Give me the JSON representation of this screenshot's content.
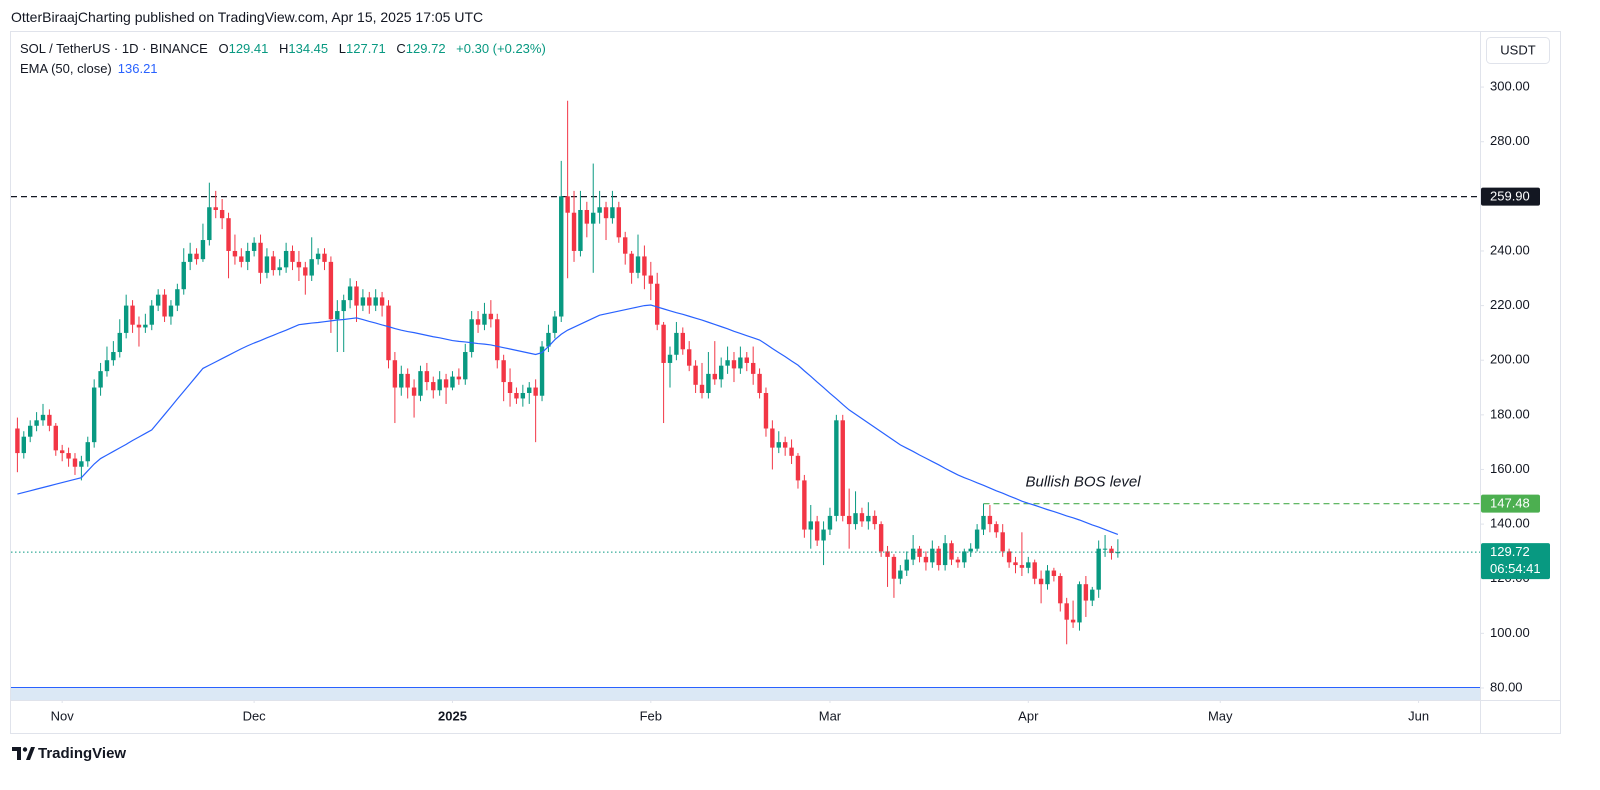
{
  "published": "OtterBiraajCharting published on TradingView.com, Apr 15, 2025 17:05 UTC",
  "footer": "TradingView",
  "chart_data": {
    "type": "candlestick",
    "currency": "USDT",
    "ohlc_labels": [
      "O",
      "H",
      "L",
      "C"
    ],
    "change": "+0.30 (+0.23%)",
    "xlim": [
      -1,
      228.6
    ],
    "ylim": [
      75.6,
      319.8
    ],
    "grid": false,
    "xticks": [
      {
        "value": 7,
        "label": "Nov"
      },
      {
        "value": 37,
        "label": "Dec"
      },
      {
        "value": 68,
        "label": "2025"
      },
      {
        "value": 99,
        "label": "Feb"
      },
      {
        "value": 127,
        "label": "Mar"
      },
      {
        "value": 158,
        "label": "Apr"
      },
      {
        "value": 188,
        "label": "May"
      },
      {
        "value": 219,
        "label": "Jun"
      }
    ],
    "yticks": [
      {
        "value": 80,
        "label": "80.00"
      },
      {
        "value": 100,
        "label": "100.00"
      },
      {
        "value": 120,
        "label": "120.00"
      },
      {
        "value": 140,
        "label": "140.00"
      },
      {
        "value": 160,
        "label": "160.00"
      },
      {
        "value": 180,
        "label": "180.00"
      },
      {
        "value": 200,
        "label": "200.00"
      },
      {
        "value": 220,
        "label": "220.00"
      },
      {
        "value": 240,
        "label": "240.00"
      },
      {
        "value": 260,
        "label": "260.00"
      },
      {
        "value": 280,
        "label": "280.00"
      },
      {
        "value": 300,
        "label": "300.00"
      }
    ],
    "series": [
      {
        "name": "SOL / TetherUS · 1D · BINANCE",
        "type": "candlestick",
        "up_color": "#089981",
        "down_color": "#f23645",
        "open": [
          175,
          166,
          172,
          176,
          178,
          180,
          176,
          167,
          166,
          164,
          161,
          163,
          170,
          190,
          196,
          200,
          203,
          210,
          220,
          213,
          212,
          213,
          220,
          224,
          216,
          220,
          226,
          236,
          239,
          237,
          244,
          256,
          255,
          252,
          240,
          238,
          236,
          240,
          243,
          232,
          238,
          233,
          234,
          240,
          236,
          234,
          231,
          237,
          239,
          236,
          215,
          218,
          222,
          227,
          220,
          223,
          220,
          223,
          220,
          200,
          190,
          195,
          190,
          187,
          196,
          192,
          189,
          193,
          190,
          194,
          193,
          203,
          215,
          213,
          217,
          215,
          200,
          192,
          188,
          186,
          188,
          190,
          187,
          205,
          210,
          216,
          260,
          254,
          240,
          255,
          250,
          254,
          256,
          252,
          256,
          245,
          239,
          232,
          238,
          231,
          228,
          213,
          199,
          202,
          210,
          204,
          198,
          191,
          188,
          195,
          193,
          198,
          200,
          197,
          201,
          199,
          195,
          188,
          175,
          168,
          170,
          168,
          165,
          156,
          138,
          141,
          134,
          138,
          143,
          178,
          143,
          140,
          144,
          141,
          143,
          140,
          130,
          128,
          120,
          123,
          127,
          131,
          128,
          126,
          131,
          125,
          133,
          127,
          126,
          130,
          131,
          138,
          143,
          140,
          137,
          130,
          126,
          125,
          124,
          126,
          120,
          118,
          123,
          121,
          111,
          105,
          104,
          118,
          112,
          116,
          131,
          131,
          129.41
        ],
        "high": [
          179,
          174,
          178,
          181,
          184,
          182,
          177,
          169,
          168,
          166,
          165,
          172,
          193,
          199,
          205,
          207,
          215,
          224,
          222,
          216,
          217,
          222,
          226,
          226,
          222,
          228,
          241,
          243,
          241,
          250,
          265,
          262,
          259,
          254,
          246,
          241,
          243,
          245,
          246,
          241,
          240,
          237,
          243,
          242,
          240,
          236,
          245,
          241,
          241,
          238,
          222,
          224,
          230,
          229,
          226,
          225,
          226,
          225,
          222,
          203,
          198,
          197,
          193,
          198,
          199,
          194,
          196,
          195,
          196,
          197,
          206,
          218,
          218,
          221,
          222,
          217,
          202,
          197,
          190,
          191,
          192,
          193,
          207,
          213,
          218,
          273,
          295,
          262,
          262,
          258,
          272,
          262,
          258,
          262,
          258,
          247,
          240,
          246,
          242,
          236,
          232,
          214,
          205,
          214,
          212,
          207,
          200,
          199,
          203,
          207,
          201,
          205,
          203,
          205,
          203,
          205,
          197,
          190,
          178,
          174,
          172,
          171,
          166,
          158,
          147,
          143,
          141,
          146,
          180,
          180,
          153,
          152,
          146,
          148,
          145,
          141,
          132,
          129,
          125,
          130,
          136,
          132,
          130,
          134,
          132,
          136,
          134,
          128,
          131,
          133,
          140,
          147.48,
          147,
          141,
          140,
          131,
          128,
          137,
          128,
          127,
          123,
          125,
          124,
          122,
          113,
          112,
          119,
          121,
          117,
          134,
          136,
          132,
          134.45
        ],
        "low": [
          159,
          164,
          170,
          174,
          176,
          174,
          165,
          163,
          161,
          158,
          156,
          161,
          168,
          187,
          194,
          198,
          201,
          208,
          210,
          205,
          210,
          211,
          218,
          214,
          213,
          218,
          224,
          233,
          235,
          236,
          242,
          252,
          248,
          230,
          235,
          234,
          233,
          238,
          228,
          230,
          231,
          231,
          232,
          233,
          229,
          224,
          229,
          235,
          233,
          210,
          203,
          203,
          219,
          214,
          218,
          217,
          218,
          216,
          197,
          177,
          187,
          186,
          179,
          185,
          189,
          186,
          187,
          184,
          189,
          191,
          191,
          201,
          210,
          211,
          212,
          197,
          185,
          183,
          184,
          183,
          184,
          170,
          185,
          203,
          208,
          214,
          230,
          236,
          238,
          245,
          232,
          250,
          244,
          250,
          243,
          235,
          228,
          230,
          226,
          222,
          211,
          177,
          190,
          200,
          202,
          196,
          188,
          186,
          186,
          191,
          190,
          195,
          192,
          195,
          196,
          191,
          186,
          172,
          160,
          166,
          165,
          162,
          153,
          135,
          131,
          132,
          125,
          136,
          141,
          141,
          131,
          138,
          139,
          138,
          138,
          128,
          117,
          113,
          118,
          121,
          125,
          126,
          123,
          124,
          123,
          123,
          125,
          124,
          124,
          128,
          130,
          136,
          137,
          135,
          128,
          124,
          122,
          121,
          122,
          118,
          111,
          116,
          119,
          108,
          96,
          102,
          101,
          106,
          110,
          113,
          128,
          127,
          127.71
        ],
        "close": [
          166,
          172,
          176,
          178,
          180,
          176,
          167,
          166,
          164,
          161,
          163,
          170,
          190,
          196,
          200,
          203,
          210,
          220,
          213,
          212,
          213,
          220,
          224,
          216,
          220,
          226,
          236,
          239,
          237,
          244,
          256,
          255,
          252,
          240,
          238,
          236,
          240,
          243,
          232,
          238,
          233,
          234,
          240,
          236,
          234,
          231,
          237,
          239,
          236,
          215,
          218,
          222,
          227,
          220,
          223,
          220,
          223,
          220,
          200,
          190,
          195,
          190,
          187,
          196,
          192,
          189,
          193,
          190,
          194,
          193,
          203,
          215,
          213,
          217,
          215,
          200,
          192,
          188,
          186,
          188,
          190,
          187,
          205,
          210,
          216,
          260,
          254,
          240,
          255,
          250,
          254,
          256,
          252,
          256,
          245,
          239,
          232,
          238,
          231,
          228,
          213,
          199,
          202,
          210,
          204,
          198,
          191,
          188,
          195,
          193,
          198,
          200,
          197,
          201,
          199,
          195,
          188,
          175,
          168,
          170,
          168,
          165,
          156,
          138,
          141,
          134,
          138,
          143,
          178,
          143,
          140,
          144,
          141,
          143,
          140,
          130,
          128,
          120,
          123,
          127,
          131,
          128,
          126,
          131,
          125,
          133,
          127,
          126,
          130,
          131,
          138,
          143,
          140,
          137,
          130,
          126,
          125,
          124,
          126,
          120,
          118,
          123,
          121,
          111,
          105,
          104,
          118,
          112,
          116,
          131,
          131,
          129.41,
          129.72
        ]
      },
      {
        "name": "EMA (50, close)",
        "type": "line",
        "color": "#2962ff",
        "values": [
          151,
          151.6,
          152.2,
          152.8,
          153.4,
          154,
          154.6,
          155.2,
          155.8,
          156.4,
          157,
          159.5,
          162,
          164,
          165.3,
          166.6,
          167.9,
          169.2,
          170.6,
          171.9,
          173.2,
          174.5,
          177.3,
          180.1,
          182.9,
          185.8,
          188.6,
          191.4,
          194.2,
          197,
          198.2,
          199.4,
          200.6,
          201.8,
          203,
          204.2,
          205.3,
          206.3,
          207.2,
          208.2,
          209.1,
          210.1,
          211,
          212,
          213,
          213.3,
          213.6,
          213.8,
          214.1,
          214.4,
          214.7,
          214.9,
          215.2,
          215.5,
          214.9,
          214.2,
          213.6,
          212.9,
          212.3,
          211.6,
          211,
          210.5,
          210.1,
          209.6,
          209.1,
          208.6,
          208.2,
          207.7,
          207.2,
          206.9,
          206.7,
          206.4,
          206.1,
          205.9,
          205.6,
          205.1,
          204.6,
          204.1,
          203.6,
          203.1,
          202.6,
          202.1,
          202.8,
          205,
          207.5,
          209.5,
          211,
          212.1,
          213.2,
          214.3,
          215.4,
          216.5,
          217,
          217.5,
          218,
          218.5,
          219,
          219.5,
          220,
          220.2,
          219.5,
          218.8,
          218.1,
          217.4,
          216.8,
          216.1,
          215.4,
          214.7,
          213.9,
          213.1,
          212.3,
          211.5,
          210.6,
          209.8,
          209,
          208.2,
          207.4,
          205.9,
          204.3,
          202.8,
          201.3,
          199.7,
          198.2,
          196.1,
          194.1,
          192,
          190,
          187.9,
          185.9,
          183.8,
          181.8,
          180.2,
          178.6,
          177,
          175.4,
          173.8,
          172.2,
          170.6,
          169,
          167.8,
          166.6,
          165.3,
          164.1,
          162.9,
          161.7,
          160.4,
          159.2,
          158,
          157,
          156.1,
          155.1,
          154.2,
          153.2,
          152.2,
          151.3,
          150.3,
          149.4,
          148.4,
          147.6,
          146.9,
          146.1,
          145.3,
          144.6,
          143.8,
          143,
          142.3,
          141.5,
          140.6,
          139.7,
          138.9,
          138,
          137.1,
          136.21
        ]
      }
    ],
    "levels": [
      {
        "value": 259.9,
        "label": "259.90",
        "color": "#131722"
      },
      {
        "value": 147.48,
        "label": "147.48",
        "color": "#4caf50",
        "text": "Bullish BOS level",
        "from": 151
      }
    ],
    "last_price": {
      "countdown": "06:54:41",
      "color": "#089981"
    }
  }
}
